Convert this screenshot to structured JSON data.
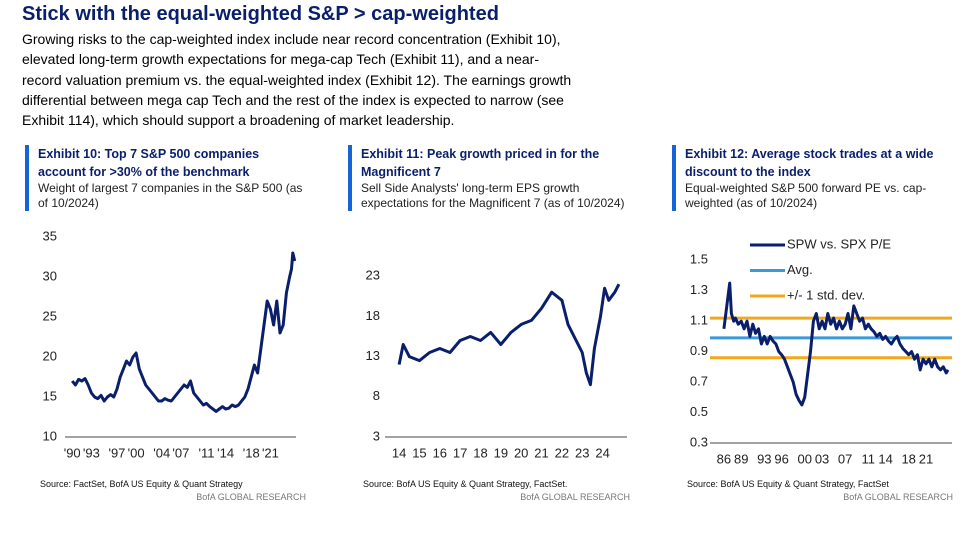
{
  "header": {
    "title": "Stick with the equal-weighted S&P > cap-weighted",
    "intro_lines": [
      "Growing risks to the cap-weighted index include near record concentration (Exhibit 10),",
      "elevated long-term growth expectations for mega-cap Tech (Exhibit 11), and a near-",
      "record valuation premium vs. the equal-weighted index (Exhibit 12). The earnings growth",
      "differential between mega cap Tech and the rest of the index is expected to narrow (see",
      "Exhibit 114), which should support a broadening of market leadership."
    ]
  },
  "chart_data": [
    {
      "type": "line",
      "title": "Exhibit 10: Top 7 S&P 500 companies account for >30% of the benchmark",
      "subtitle": "Weight of largest 7 companies in the S&P 500 (as of 10/2024)",
      "source": "Source: FactSet, BofA US Equity & Quant Strategy",
      "credit": "BofA GLOBAL RESEARCH",
      "x": [
        1990,
        1990.5,
        1991,
        1991.5,
        1992,
        1992.5,
        1993,
        1993.5,
        1994,
        1994.5,
        1995,
        1995.5,
        1996,
        1996.5,
        1997,
        1997.5,
        1998,
        1998.5,
        1999,
        1999.5,
        2000,
        2000.5,
        2001,
        2001.5,
        2002,
        2002.5,
        2003,
        2003.5,
        2004,
        2004.5,
        2005,
        2005.5,
        2006,
        2006.5,
        2007,
        2007.5,
        2008,
        2008.5,
        2009,
        2009.5,
        2010,
        2010.5,
        2011,
        2011.5,
        2012,
        2012.5,
        2013,
        2013.5,
        2014,
        2014.5,
        2015,
        2015.5,
        2016,
        2016.5,
        2017,
        2017.5,
        2018,
        2018.5,
        2019,
        2019.5,
        2020,
        2020.5,
        2021,
        2021.5,
        2022,
        2022.5,
        2023,
        2023.5,
        2024,
        2024.3,
        2024.5,
        2024.8
      ],
      "series": [
        {
          "color": "#0a1f6b",
          "values": [
            17,
            16.5,
            17.2,
            17,
            17.3,
            16.5,
            15.5,
            15,
            14.8,
            15.2,
            14.5,
            15,
            15.3,
            15,
            16,
            17.5,
            18.5,
            19.5,
            19,
            20,
            20.5,
            18.5,
            17.5,
            16.5,
            16,
            15.5,
            15,
            14.5,
            14.5,
            14.8,
            14.6,
            14.5,
            15,
            15.5,
            16,
            16.5,
            16.2,
            17,
            15.5,
            15,
            14.5,
            14,
            14.2,
            13.8,
            13.5,
            13.2,
            13.5,
            13.8,
            13.5,
            13.6,
            14,
            13.8,
            14,
            14.5,
            15,
            16,
            17.5,
            19,
            18,
            21,
            24,
            27,
            26,
            24,
            27,
            23,
            24,
            28,
            30,
            31,
            33,
            32
          ]
        }
      ],
      "xlim": [
        1989.5,
        2025
      ],
      "xticks": [
        {
          "value": 1990,
          "label": "'90"
        },
        {
          "value": 1993,
          "label": "'93"
        },
        {
          "value": 1997,
          "label": "'97"
        },
        {
          "value": 2000,
          "label": "'00"
        },
        {
          "value": 2004,
          "label": "'04"
        },
        {
          "value": 2007,
          "label": "'07"
        },
        {
          "value": 2011,
          "label": "'11"
        },
        {
          "value": 2014,
          "label": "'14"
        },
        {
          "value": 2018,
          "label": "'18"
        },
        {
          "value": 2021,
          "label": "'21"
        }
      ],
      "ylim": [
        10,
        35
      ],
      "yticks": [
        10,
        15,
        20,
        25,
        30,
        35
      ],
      "grid": false
    },
    {
      "type": "line",
      "title": "Exhibit 11: Peak growth priced in for the Magnificent 7",
      "subtitle": "Sell Side Analysts' long-term EPS growth expectations for the Magnificent 7 (as of 10/2024)",
      "source": "Source: BofA US Equity & Quant Strategy, FactSet.",
      "credit": "BofA GLOBAL RESEARCH",
      "x": [
        2014,
        2014.2,
        2014.5,
        2015,
        2015.5,
        2016,
        2016.5,
        2017,
        2017.5,
        2018,
        2018.5,
        2019,
        2019.5,
        2020,
        2020.5,
        2021,
        2021.5,
        2022,
        2022.3,
        2022.6,
        2023,
        2023.2,
        2023.4,
        2023.6,
        2023.9,
        2024.1,
        2024.3,
        2024.6,
        2024.8
      ],
      "series": [
        {
          "color": "#0a1f6b",
          "values": [
            12,
            14.5,
            13,
            12.5,
            13.5,
            14,
            13.5,
            15,
            15.5,
            15,
            16,
            14.5,
            16,
            17,
            17.5,
            19,
            21,
            20,
            17,
            15.5,
            13.5,
            11,
            9.5,
            14,
            18,
            21.5,
            20,
            21,
            22
          ]
        }
      ],
      "xlim": [
        2013.7,
        2025.2
      ],
      "xticks": [
        {
          "value": 2014,
          "label": "14"
        },
        {
          "value": 2015,
          "label": "15"
        },
        {
          "value": 2016,
          "label": "16"
        },
        {
          "value": 2017,
          "label": "17"
        },
        {
          "value": 2018,
          "label": "18"
        },
        {
          "value": 2019,
          "label": "19"
        },
        {
          "value": 2020,
          "label": "20"
        },
        {
          "value": 2021,
          "label": "21"
        },
        {
          "value": 2022,
          "label": "22"
        },
        {
          "value": 2023,
          "label": "23"
        },
        {
          "value": 2024,
          "label": "24"
        }
      ],
      "ylim": [
        3,
        26
      ],
      "yticks": [
        3,
        8,
        13,
        18,
        23
      ],
      "grid": false
    },
    {
      "type": "line",
      "title": "Exhibit 12: Average stock trades at a wide discount to the index",
      "subtitle": "Equal-weighted S&P 500 forward PE vs. cap-weighted (as of 10/2024)",
      "source": "Source: BofA US Equity & Quant Strategy, FactSet",
      "credit": "BofA GLOBAL RESEARCH",
      "x": [
        1986,
        1986.5,
        1987,
        1987.3,
        1987.7,
        1988,
        1988.5,
        1989,
        1989.5,
        1990,
        1990.5,
        1991,
        1991.5,
        1992,
        1992.5,
        1993,
        1993.5,
        1994,
        1994.5,
        1995,
        1995.5,
        1996,
        1996.5,
        1997,
        1997.5,
        1998,
        1998.5,
        1999,
        1999.5,
        2000,
        2000.5,
        2001,
        2001.5,
        2002,
        2002.5,
        2003,
        2003.5,
        2004,
        2004.5,
        2005,
        2005.5,
        2006,
        2006.5,
        2007,
        2007.5,
        2008,
        2008.5,
        2009,
        2009.5,
        2010,
        2010.5,
        2011,
        2011.5,
        2012,
        2012.5,
        2013,
        2013.5,
        2014,
        2014.5,
        2015,
        2015.5,
        2016,
        2016.5,
        2017,
        2017.5,
        2018,
        2018.5,
        2019,
        2019.5,
        2020,
        2020.5,
        2021,
        2021.5,
        2022,
        2022.5,
        2023,
        2023.5,
        2024,
        2024.5,
        2024.8
      ],
      "series": [
        {
          "name": "SPW vs. SPX P/E",
          "color": "#0a1f6b",
          "values": [
            1.05,
            1.2,
            1.35,
            1.15,
            1.1,
            1.12,
            1.08,
            1.1,
            1.05,
            1.1,
            1.0,
            1.08,
            1.02,
            1.05,
            0.95,
            1.0,
            0.95,
            1.0,
            0.97,
            0.95,
            0.9,
            0.88,
            0.85,
            0.8,
            0.75,
            0.7,
            0.62,
            0.58,
            0.55,
            0.6,
            0.75,
            0.9,
            1.1,
            1.15,
            1.05,
            1.1,
            1.05,
            1.15,
            1.08,
            1.12,
            1.05,
            1.1,
            1.05,
            1.08,
            1.15,
            1.05,
            1.2,
            1.15,
            1.1,
            1.12,
            1.05,
            1.08,
            1.05,
            1.03,
            1.0,
            1.02,
            0.98,
            1.0,
            0.97,
            0.95,
            0.98,
            1.0,
            0.95,
            0.92,
            0.9,
            0.88,
            0.9,
            0.85,
            0.88,
            0.78,
            0.85,
            0.82,
            0.85,
            0.8,
            0.85,
            0.8,
            0.78,
            0.8,
            0.76,
            0.78
          ]
        }
      ],
      "reference_lines": [
        {
          "name": "Avg.",
          "color": "#3a9ad9",
          "values": [
            0.99
          ]
        },
        {
          "name": "+/- 1 std. dev.",
          "color": "#f0a81c",
          "values": [
            1.12,
            0.86
          ]
        }
      ],
      "xlim": [
        1985.5,
        2025.5
      ],
      "xticks": [
        {
          "value": 1986,
          "label": "86"
        },
        {
          "value": 1989,
          "label": "89"
        },
        {
          "value": 1993,
          "label": "93"
        },
        {
          "value": 1996,
          "label": "96"
        },
        {
          "value": 2000,
          "label": "00"
        },
        {
          "value": 2003,
          "label": "03"
        },
        {
          "value": 2007,
          "label": "07"
        },
        {
          "value": 2011,
          "label": "11"
        },
        {
          "value": 2014,
          "label": "14"
        },
        {
          "value": 2018,
          "label": "18"
        },
        {
          "value": 2021,
          "label": "21"
        }
      ],
      "ylim": [
        0.3,
        1.6
      ],
      "yticks": [
        0.3,
        0.5,
        0.7,
        0.9,
        1.1,
        1.3,
        1.5
      ],
      "grid": false
    }
  ]
}
